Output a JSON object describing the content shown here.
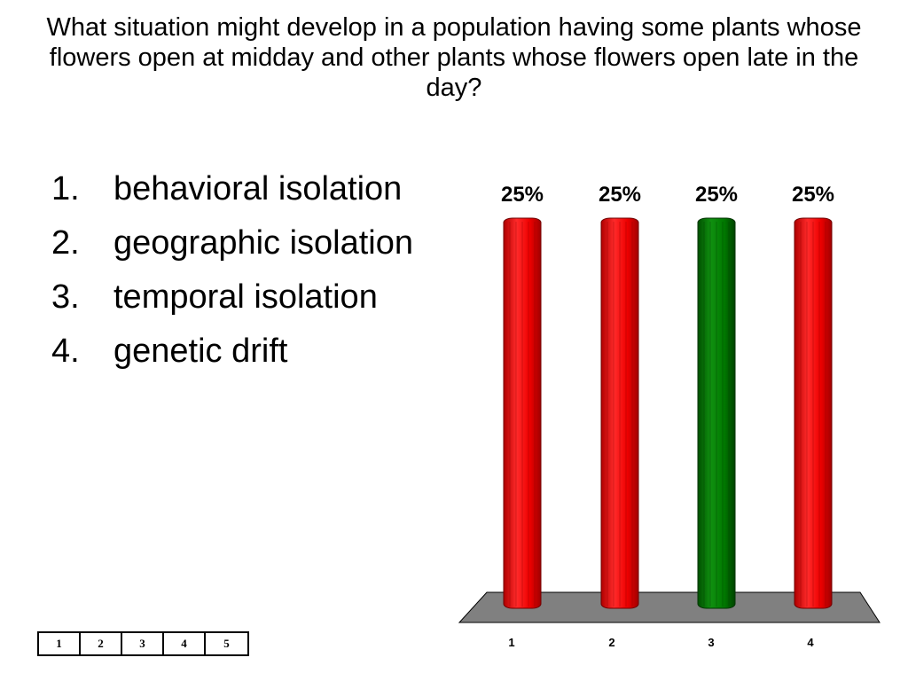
{
  "question": "What situation might develop in a population having some plants whose flowers open at midday and other plants whose flowers open late in the day?",
  "options": [
    {
      "number": "1.",
      "text": "behavioral isolation"
    },
    {
      "number": "2.",
      "text": "geographic isolation"
    },
    {
      "number": "3.",
      "text": "temporal isolation"
    },
    {
      "number": "4.",
      "text": "genetic drift"
    }
  ],
  "keypad": [
    "1",
    "2",
    "3",
    "4",
    "5"
  ],
  "colors": {
    "bar_default": "#ff0000",
    "bar_correct": "#008000",
    "floor": "#808080"
  },
  "chart_data": {
    "type": "bar",
    "categories": [
      "1",
      "2",
      "3",
      "4"
    ],
    "values": [
      25,
      25,
      25,
      25
    ],
    "data_labels": [
      "25%",
      "25%",
      "25%",
      "25%"
    ],
    "highlight_index": 2,
    "ylim": [
      0,
      25
    ],
    "grid": false
  }
}
